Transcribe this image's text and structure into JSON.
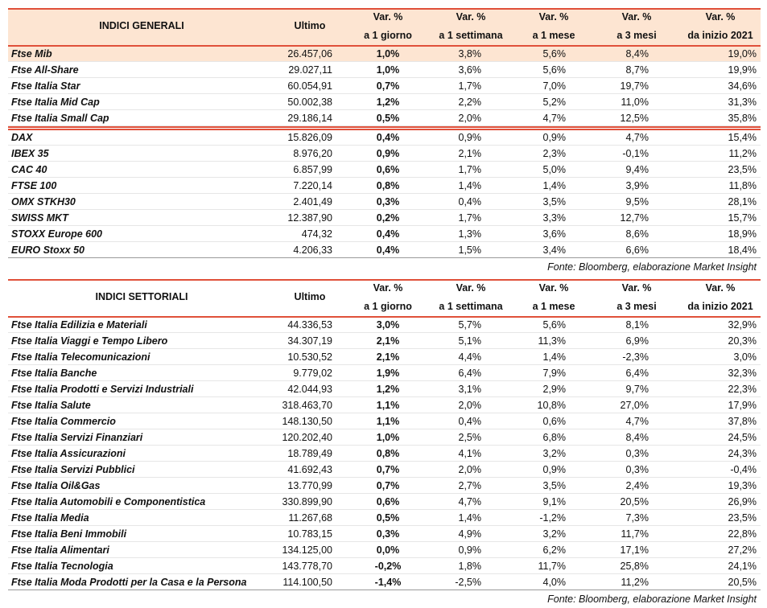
{
  "tables": [
    {
      "header": {
        "title": "INDICI GENERALI",
        "columns": [
          [
            "Ultimo"
          ],
          [
            "Var. %",
            "a 1 giorno"
          ],
          [
            "Var. %",
            "a 1 settimana"
          ],
          [
            "Var. %",
            "a 1 mese"
          ],
          [
            "Var. %",
            "a 3 mesi"
          ],
          [
            "Var. %",
            "da inizio 2021"
          ]
        ]
      },
      "row_groups": [
        [
          [
            "Ftse Mib",
            "26.457,06",
            "1,0%",
            "3,8%",
            "5,6%",
            "8,4%",
            "19,0%"
          ],
          [
            "Ftse All-Share",
            "29.027,11",
            "1,0%",
            "3,6%",
            "5,6%",
            "8,7%",
            "19,9%"
          ],
          [
            "Ftse Italia Star",
            "60.054,91",
            "0,7%",
            "1,7%",
            "7,0%",
            "19,7%",
            "34,6%"
          ],
          [
            "Ftse Italia Mid Cap",
            "50.002,38",
            "1,2%",
            "2,2%",
            "5,2%",
            "11,0%",
            "31,3%"
          ],
          [
            "Ftse Italia Small Cap",
            "29.186,14",
            "0,5%",
            "2,0%",
            "4,7%",
            "12,5%",
            "35,8%"
          ]
        ],
        [
          [
            "DAX",
            "15.826,09",
            "0,4%",
            "0,9%",
            "0,9%",
            "4,7%",
            "15,4%"
          ],
          [
            "IBEX 35",
            "8.976,20",
            "0,9%",
            "2,1%",
            "2,3%",
            "-0,1%",
            "11,2%"
          ],
          [
            "CAC 40",
            "6.857,99",
            "0,6%",
            "1,7%",
            "5,0%",
            "9,4%",
            "23,5%"
          ],
          [
            "FTSE 100",
            "7.220,14",
            "0,8%",
            "1,4%",
            "1,4%",
            "3,9%",
            "11,8%"
          ],
          [
            "OMX STKH30",
            "2.401,49",
            "0,3%",
            "0,4%",
            "3,5%",
            "9,5%",
            "28,1%"
          ],
          [
            "SWISS MKT",
            "12.387,90",
            "0,2%",
            "1,7%",
            "3,3%",
            "12,7%",
            "15,7%"
          ],
          [
            "STOXX Europe 600",
            "474,32",
            "0,4%",
            "1,3%",
            "3,6%",
            "8,6%",
            "18,9%"
          ],
          [
            "EURO Stoxx 50",
            "4.206,33",
            "0,4%",
            "1,5%",
            "3,4%",
            "6,6%",
            "18,4%"
          ]
        ]
      ],
      "source": "Fonte: Bloomberg, elaborazione Market Insight"
    },
    {
      "header": {
        "title": "INDICI SETTORIALI",
        "columns": [
          [
            "Ultimo"
          ],
          [
            "Var. %",
            "a 1 giorno"
          ],
          [
            "Var. %",
            "a 1 settimana"
          ],
          [
            "Var. %",
            "a 1 mese"
          ],
          [
            "Var. %",
            "a 3 mesi"
          ],
          [
            "Var. %",
            "da inizio 2021"
          ]
        ]
      },
      "row_groups": [
        [
          [
            "Ftse Italia Edilizia e Materiali",
            "44.336,53",
            "3,0%",
            "5,7%",
            "5,6%",
            "8,1%",
            "32,9%"
          ],
          [
            "Ftse Italia Viaggi e Tempo Libero",
            "34.307,19",
            "2,1%",
            "5,1%",
            "11,3%",
            "6,9%",
            "20,3%"
          ],
          [
            "Ftse Italia Telecomunicazioni",
            "10.530,52",
            "2,1%",
            "4,4%",
            "1,4%",
            "-2,3%",
            "3,0%"
          ],
          [
            "Ftse Italia Banche",
            "9.779,02",
            "1,9%",
            "6,4%",
            "7,9%",
            "6,4%",
            "32,3%"
          ],
          [
            "Ftse Italia Prodotti e Servizi Industriali",
            "42.044,93",
            "1,2%",
            "3,1%",
            "2,9%",
            "9,7%",
            "22,3%"
          ],
          [
            "Ftse Italia Salute",
            "318.463,70",
            "1,1%",
            "2,0%",
            "10,8%",
            "27,0%",
            "17,9%"
          ],
          [
            "Ftse Italia Commercio",
            "148.130,50",
            "1,1%",
            "0,4%",
            "0,6%",
            "4,7%",
            "37,8%"
          ],
          [
            "Ftse Italia Servizi Finanziari",
            "120.202,40",
            "1,0%",
            "2,5%",
            "6,8%",
            "8,4%",
            "24,5%"
          ],
          [
            "Ftse Italia Assicurazioni",
            "18.789,49",
            "0,8%",
            "4,1%",
            "3,2%",
            "0,3%",
            "24,3%"
          ],
          [
            "Ftse Italia Servizi Pubblici",
            "41.692,43",
            "0,7%",
            "2,0%",
            "0,9%",
            "0,3%",
            "-0,4%"
          ],
          [
            "Ftse Italia Oil&Gas",
            "13.770,99",
            "0,7%",
            "2,7%",
            "3,5%",
            "2,4%",
            "19,3%"
          ],
          [
            "Ftse Italia Automobili e Componentistica",
            "330.899,90",
            "0,6%",
            "4,7%",
            "9,1%",
            "20,5%",
            "26,9%"
          ],
          [
            "Ftse Italia Media",
            "11.267,68",
            "0,5%",
            "1,4%",
            "-1,2%",
            "7,3%",
            "23,5%"
          ],
          [
            "Ftse Italia Beni Immobili",
            "10.783,15",
            "0,3%",
            "4,9%",
            "3,2%",
            "11,7%",
            "22,8%"
          ],
          [
            "Ftse Italia Alimentari",
            "134.125,00",
            "0,0%",
            "0,9%",
            "6,2%",
            "17,1%",
            "27,2%"
          ],
          [
            "Ftse Italia Tecnologia",
            "143.778,70",
            "-0,2%",
            "1,8%",
            "11,7%",
            "25,8%",
            "24,1%"
          ],
          [
            "Ftse Italia Moda Prodotti per la Casa e la Persona",
            "114.100,50",
            "-1,4%",
            "-2,5%",
            "4,0%",
            "11,2%",
            "20,5%"
          ]
        ]
      ],
      "source": "Fonte: Bloomberg, elaborazione Market Insight"
    }
  ]
}
